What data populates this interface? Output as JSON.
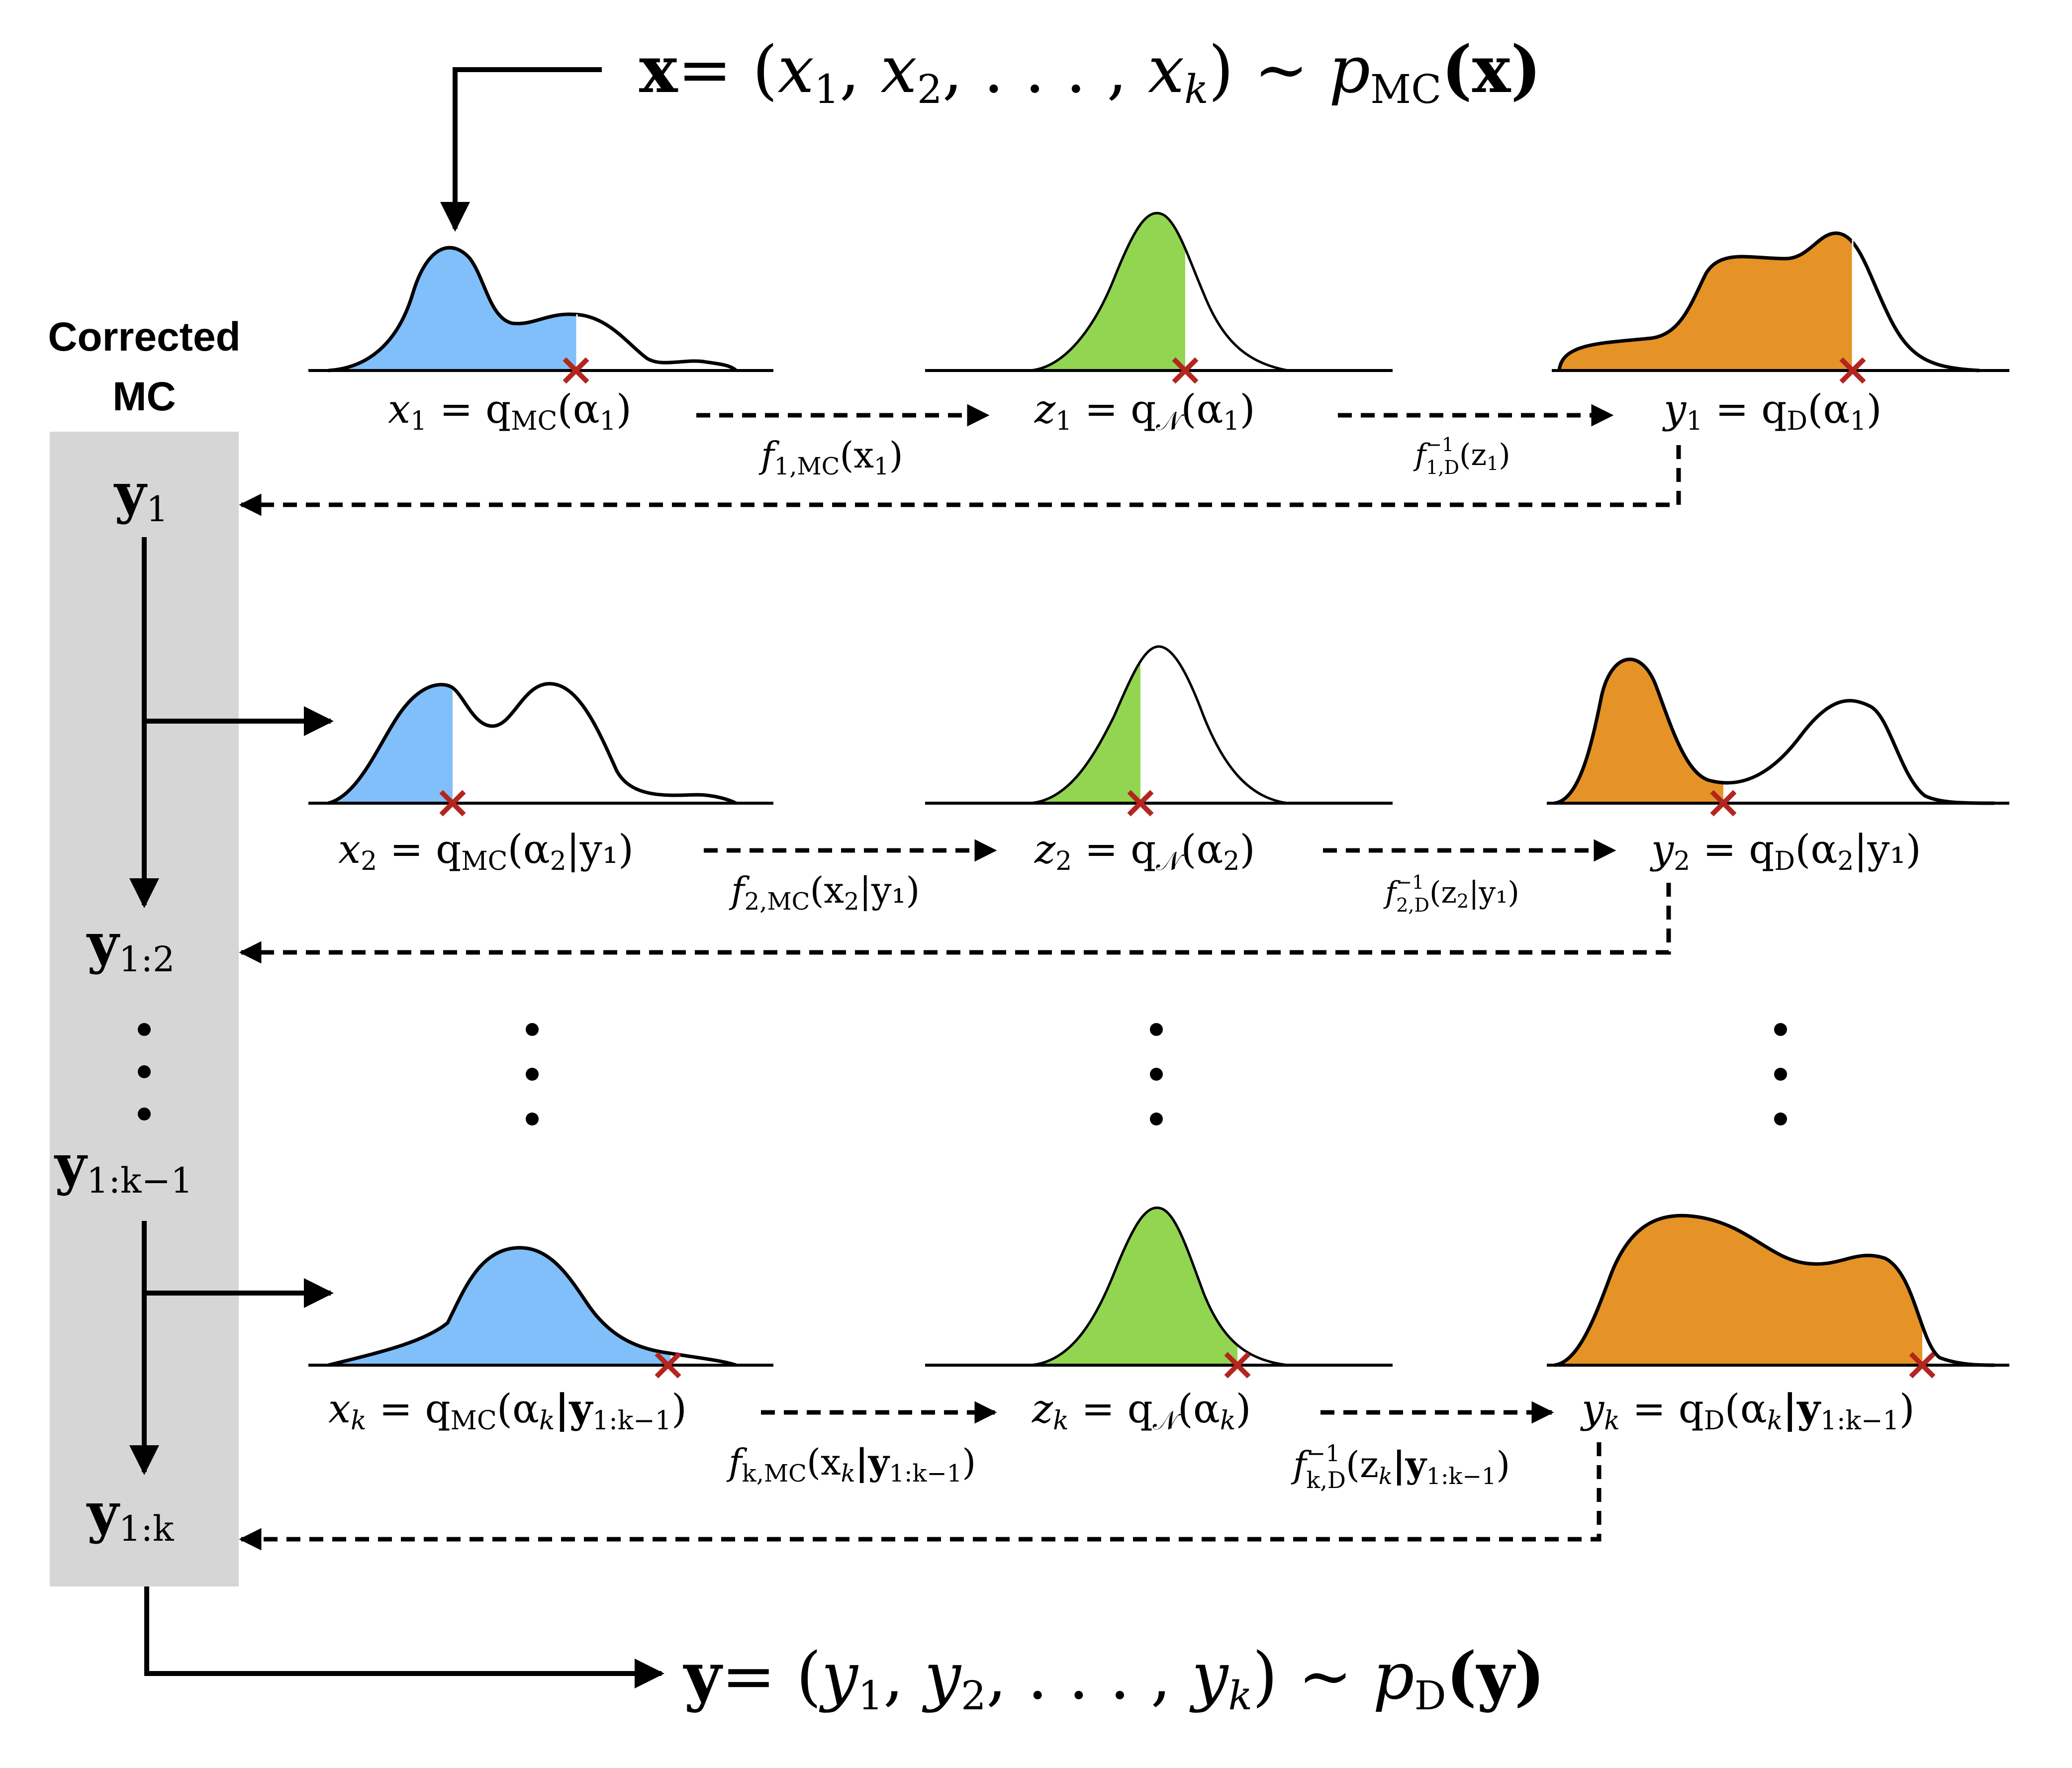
{
  "colors": {
    "mc": "#80bff9",
    "normal": "#92d551",
    "data": "#e59326",
    "marker": "#b3261e",
    "panel": "#d6d6d6"
  },
  "header": {
    "input": {
      "lhs": "x",
      "eq": "= (",
      "v1": "x",
      "s1": "1",
      "c1": ", ",
      "v2": "x",
      "s2": "2",
      "c2": ", . . . , ",
      "v3": "x",
      "s3": "k",
      "rhs": ") ~ ",
      "p": "p",
      "psub": "MC",
      "arg": "(x)"
    },
    "output": {
      "lhs": "y",
      "eq": "= (",
      "v1": "y",
      "s1": "1",
      "c1": ", ",
      "v2": "y",
      "s2": "2",
      "c2": ", . . . , ",
      "v3": "y",
      "s3": "k",
      "rhs": ") ~ ",
      "p": "p",
      "psub": "D",
      "arg": "(y)"
    }
  },
  "sidebar": {
    "title_line1": "Corrected",
    "title_line2": "MC",
    "states": [
      {
        "var": "y",
        "sub": "1"
      },
      {
        "var": "y",
        "sub": "1:2"
      },
      {
        "var": "y",
        "sub": "1:k−1"
      },
      {
        "var": "y",
        "sub": "1:k"
      }
    ]
  },
  "rows": [
    {
      "x_label": {
        "v": "x",
        "s": "1",
        "q": " = q",
        "qs": "MC",
        "arg": "(α",
        "as": "1",
        "tail": ")"
      },
      "z_label": {
        "v": "z",
        "s": "1",
        "q": " = q",
        "qs": "𝒩",
        "arg": "(α",
        "as": "1",
        "tail": ")"
      },
      "y_label": {
        "v": "y",
        "s": "1",
        "q": " = q",
        "qs": "D",
        "arg": "(α",
        "as": "1",
        "tail": ")"
      },
      "f_label": {
        "f": "f",
        "s": "1,MC",
        "arg": "(x",
        "as": "1",
        "tail": ")"
      },
      "finv_label": {
        "f": "f",
        "sup": "−1",
        "s": "1,D",
        "arg": "(z",
        "as": "1",
        "tail": ")"
      }
    },
    {
      "x_label": {
        "v": "x",
        "s": "2",
        "q": " = q",
        "qs": "MC",
        "arg": "(α",
        "as": "2",
        "tail": "|y₁)"
      },
      "z_label": {
        "v": "z",
        "s": "2",
        "q": " = q",
        "qs": "𝒩",
        "arg": "(α",
        "as": "2",
        "tail": ")"
      },
      "y_label": {
        "v": "y",
        "s": "2",
        "q": " = q",
        "qs": "D",
        "arg": "(α",
        "as": "2",
        "tail": "|y₁)"
      },
      "f_label": {
        "f": "f",
        "s": "2,MC",
        "arg": "(x",
        "as": "2",
        "tail": "|y₁)"
      },
      "finv_label": {
        "f": "f",
        "sup": "−1",
        "s": "2,D",
        "arg": "(z",
        "as": "2",
        "tail": "|y₁)"
      }
    },
    {
      "x_label": {
        "v": "x",
        "s": "k",
        "q": " = q",
        "qs": "MC",
        "arg": "(α",
        "as": "k",
        "tail": "|y",
        "ts": "1:k−1",
        "end": ")"
      },
      "z_label": {
        "v": "z",
        "s": "k",
        "q": " = q",
        "qs": "𝒩",
        "arg": "(α",
        "as": "k",
        "tail": ")"
      },
      "y_label": {
        "v": "y",
        "s": "k",
        "q": " = q",
        "qs": "D",
        "arg": "(α",
        "as": "k",
        "tail": "|y",
        "ts": "1:k−1",
        "end": ")"
      },
      "f_label": {
        "f": "f",
        "s": "k,MC",
        "arg": "(x",
        "as": "k",
        "tail": "|y",
        "ts": "1:k−1",
        "end": ")"
      },
      "finv_label": {
        "f": "f",
        "sup": "−1",
        "s": "k,D",
        "arg": "(z",
        "as": "k",
        "tail": "|y",
        "ts": "1:k−1",
        "end": ")"
      }
    }
  ]
}
